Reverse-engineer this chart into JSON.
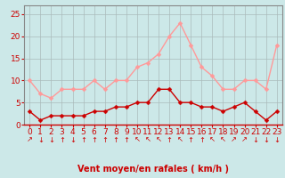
{
  "x": [
    0,
    1,
    2,
    3,
    4,
    5,
    6,
    7,
    8,
    9,
    10,
    11,
    12,
    13,
    14,
    15,
    16,
    17,
    18,
    19,
    20,
    21,
    22,
    23
  ],
  "moyen": [
    3,
    1,
    2,
    2,
    2,
    2,
    3,
    3,
    4,
    4,
    5,
    5,
    8,
    8,
    5,
    5,
    4,
    4,
    3,
    4,
    5,
    3,
    1,
    3
  ],
  "rafales": [
    10,
    7,
    6,
    8,
    8,
    8,
    10,
    8,
    10,
    10,
    13,
    14,
    16,
    20,
    23,
    18,
    13,
    11,
    8,
    8,
    10,
    10,
    8,
    18
  ],
  "arrows": [
    "↗",
    "↓",
    "↓",
    "↑",
    "↓",
    "↑",
    "↑",
    "↑",
    "↑",
    "↑",
    "↖",
    "↖",
    "↖",
    "↑",
    "↖",
    "↑",
    "↑",
    "↖",
    "↖",
    "↗",
    "↗",
    "↓",
    "↓",
    "↓"
  ],
  "moyen_color": "#cc0000",
  "rafales_color": "#ff9999",
  "bg_color": "#cce8e8",
  "grid_color": "#aabbbb",
  "axis_color": "#cc0000",
  "spine_color": "#888888",
  "xlabel": "Vent moyen/en rafales ( km/h )",
  "ylim": [
    0,
    27
  ],
  "yticks": [
    0,
    5,
    10,
    15,
    20,
    25
  ],
  "xlabel_fontsize": 7,
  "tick_fontsize": 6.5,
  "arrow_fontsize": 6,
  "line_width": 1.0,
  "marker_size": 2.5
}
